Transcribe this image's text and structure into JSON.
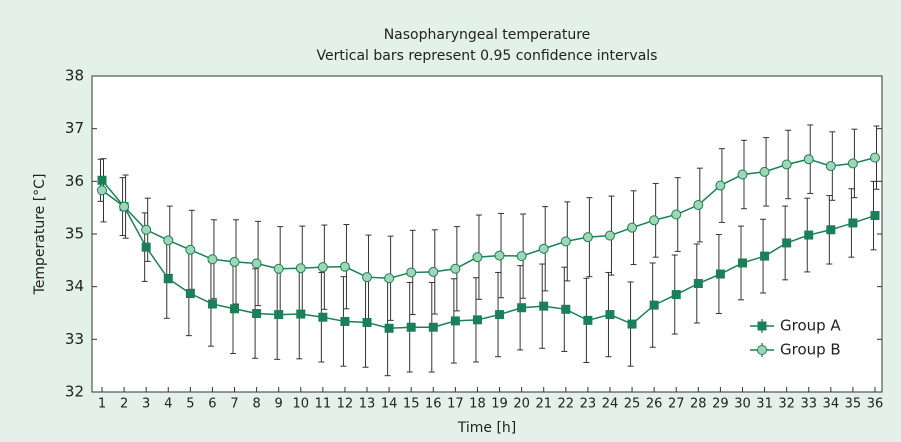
{
  "chart_data": {
    "type": "line",
    "title": "Nasopharyngeal temperature",
    "subtitle": "Vertical bars represent 0.95 confidence intervals",
    "x_label": "Time [h]",
    "y_label": "Temperature [°C]",
    "categories": [
      "1",
      "2",
      "3",
      "4",
      "5",
      "6",
      "7",
      "8",
      "9",
      "10",
      "11",
      "12",
      "13",
      "14",
      "15",
      "16",
      "17",
      "18",
      "19",
      "20",
      "21",
      "22",
      "23",
      "24",
      "25",
      "26",
      "27",
      "28",
      "29",
      "30",
      "31",
      "32",
      "33",
      "34",
      "35",
      "36"
    ],
    "series": [
      {
        "name": "Group A",
        "color": "#1b7f57",
        "marker": "square",
        "values": [
          36.02,
          35.52,
          34.75,
          34.15,
          33.87,
          33.67,
          33.58,
          33.49,
          33.47,
          33.48,
          33.42,
          33.34,
          33.32,
          33.21,
          33.23,
          33.23,
          33.35,
          33.37,
          33.47,
          33.6,
          33.63,
          33.57,
          33.36,
          33.47,
          33.29,
          33.65,
          33.85,
          34.06,
          34.24,
          34.45,
          34.58,
          34.83,
          34.98,
          35.08,
          35.21,
          35.35
        ],
        "errors": [
          0.4,
          0.55,
          0.65,
          0.75,
          0.8,
          0.8,
          0.85,
          0.85,
          0.85,
          0.85,
          0.85,
          0.85,
          0.85,
          0.9,
          0.85,
          0.85,
          0.8,
          0.8,
          0.8,
          0.8,
          0.8,
          0.8,
          0.8,
          0.8,
          0.8,
          0.8,
          0.75,
          0.75,
          0.75,
          0.7,
          0.7,
          0.7,
          0.7,
          0.65,
          0.65,
          0.65
        ]
      },
      {
        "name": "Group B",
        "color": "#1b7f57",
        "marker_fill": "#9fd6b5",
        "marker": "circle",
        "values": [
          35.83,
          35.52,
          35.08,
          34.88,
          34.7,
          34.52,
          34.47,
          34.44,
          34.34,
          34.35,
          34.37,
          34.38,
          34.18,
          34.16,
          34.27,
          34.28,
          34.34,
          34.56,
          34.59,
          34.58,
          34.72,
          34.86,
          34.94,
          34.97,
          35.12,
          35.26,
          35.37,
          35.55,
          35.92,
          36.13,
          36.18,
          36.32,
          36.42,
          36.29,
          36.34,
          36.45
        ],
        "errors": [
          0.6,
          0.6,
          0.6,
          0.65,
          0.75,
          0.75,
          0.8,
          0.8,
          0.8,
          0.8,
          0.8,
          0.8,
          0.8,
          0.8,
          0.8,
          0.8,
          0.8,
          0.8,
          0.8,
          0.8,
          0.8,
          0.75,
          0.75,
          0.75,
          0.7,
          0.7,
          0.7,
          0.7,
          0.7,
          0.65,
          0.65,
          0.65,
          0.65,
          0.65,
          0.65,
          0.6
        ]
      }
    ],
    "ylim": [
      32,
      38
    ],
    "yticks": [
      32,
      33,
      34,
      35,
      36,
      37,
      38
    ],
    "legend": "lower right"
  }
}
